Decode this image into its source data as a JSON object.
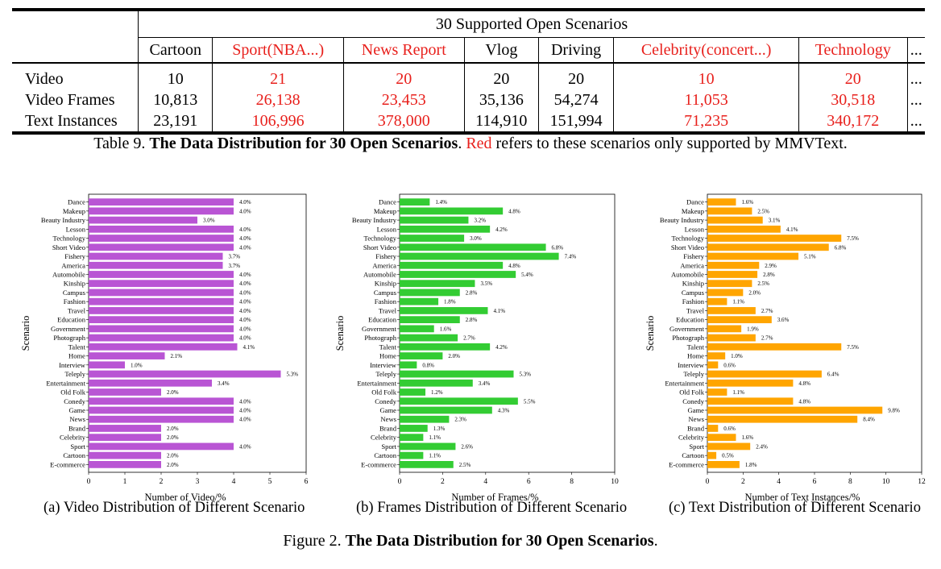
{
  "table": {
    "group_header": "30 Supported Open Scenarios",
    "columns": [
      {
        "label": "Cartoon",
        "red": false,
        "video": "10",
        "frames": "10,813",
        "text": "23,191"
      },
      {
        "label": "Sport(NBA...)",
        "red": true,
        "video": "21",
        "frames": "26,138",
        "text": "106,996"
      },
      {
        "label": "News Report",
        "red": true,
        "video": "20",
        "frames": "23,453",
        "text": "378,000"
      },
      {
        "label": "Vlog",
        "red": false,
        "video": "20",
        "frames": "35,136",
        "text": "114,910"
      },
      {
        "label": "Driving",
        "red": false,
        "video": "20",
        "frames": "54,274",
        "text": "151,994"
      },
      {
        "label": "Celebrity(concert...)",
        "red": true,
        "video": "10",
        "frames": "11,053",
        "text": "71,235"
      },
      {
        "label": "Technology",
        "red": true,
        "video": "20",
        "frames": "30,518",
        "text": "340,172"
      },
      {
        "label": "...",
        "red": false,
        "video": "...",
        "frames": "...",
        "text": "..."
      }
    ],
    "row_labels": {
      "video": "Video",
      "frames": "Video Frames",
      "text": "Text Instances"
    }
  },
  "table_caption": {
    "prefix": "Table 9. ",
    "bold": "The Data Distribution for 30 Open Scenarios",
    "sep": ". ",
    "red_word": "Red",
    "rest": " refers to these scenarios only supported by MMVText."
  },
  "chart_data": [
    {
      "type": "bar",
      "orientation": "horizontal",
      "color": "#b955d4",
      "ylabel": "Scenario",
      "xlabel": "Number of Video/%",
      "xlim": [
        0,
        6
      ],
      "xticks": [
        "0",
        "1",
        "2",
        "3",
        "4",
        "5",
        "6"
      ],
      "categories": [
        "Dance",
        "Makeup",
        "Beauty Industry",
        "Lesson",
        "Technology",
        "Short Video",
        "Fishery",
        "America",
        "Automobile",
        "Kinship",
        "Campus",
        "Fashion",
        "Travel",
        "Education",
        "Government",
        "Photograph",
        "Talent",
        "Home",
        "Interview",
        "Teleply",
        "Entertainment",
        "Old Folk",
        "Conedy",
        "Game",
        "News",
        "Brand",
        "Celebrity",
        "Sport",
        "Cartoon",
        "E-commerce"
      ],
      "values": [
        4.0,
        4.0,
        3.0,
        4.0,
        4.0,
        4.0,
        3.7,
        3.7,
        4.0,
        4.0,
        4.0,
        4.0,
        4.0,
        4.0,
        4.0,
        4.0,
        4.1,
        2.1,
        1.0,
        5.3,
        3.4,
        2.0,
        4.0,
        4.0,
        4.0,
        2.0,
        2.0,
        4.0,
        2.0,
        2.0
      ],
      "labels": [
        "4.0%",
        "4.0%",
        "3.0%",
        "4.0%",
        "4.0%",
        "4.0%",
        "3.7%",
        "3.7%",
        "4.0%",
        "4.0%",
        "4.0%",
        "4.0%",
        "4.0%",
        "4.0%",
        "4.0%",
        "4.0%",
        "4.1%",
        "2.1%",
        "1.0%",
        "5.3%",
        "3.4%",
        "2.0%",
        "4.0%",
        "4.0%",
        "4.0%",
        "2.0%",
        "2.0%",
        "4.0%",
        "2.0%",
        "2.0%"
      ]
    },
    {
      "type": "bar",
      "orientation": "horizontal",
      "color": "#33cc33",
      "ylabel": "Scenario",
      "xlabel": "Number of Frames/%",
      "xlim": [
        0,
        10
      ],
      "xticks": [
        "0",
        "2",
        "4",
        "6",
        "8",
        "10"
      ],
      "categories": [
        "Dance",
        "Makeup",
        "Beauty Industry",
        "Lesson",
        "Technology",
        "Short Video",
        "Fishery",
        "America",
        "Automobile",
        "Kinship",
        "Campus",
        "Fashion",
        "Travel",
        "Education",
        "Government",
        "Photograph",
        "Talent",
        "Home",
        "Interview",
        "Teleply",
        "Entertainment",
        "Old Folk",
        "Conedy",
        "Game",
        "News",
        "Brand",
        "Celebrity",
        "Sport",
        "Cartoon",
        "E-commerce"
      ],
      "values": [
        1.4,
        4.8,
        3.2,
        4.2,
        3.0,
        6.8,
        7.4,
        4.8,
        5.4,
        3.5,
        2.8,
        1.8,
        4.1,
        2.8,
        1.6,
        2.7,
        4.2,
        2.0,
        0.8,
        5.3,
        3.4,
        1.2,
        5.5,
        4.3,
        2.3,
        1.3,
        1.1,
        2.6,
        1.1,
        2.5
      ],
      "labels": [
        "1.4%",
        "4.8%",
        "3.2%",
        "4.2%",
        "3.0%",
        "6.8%",
        "7.4%",
        "4.8%",
        "5.4%",
        "3.5%",
        "2.8%",
        "1.8%",
        "4.1%",
        "2.8%",
        "1.6%",
        "2.7%",
        "4.2%",
        "2.0%",
        "0.8%",
        "5.3%",
        "3.4%",
        "1.2%",
        "5.5%",
        "4.3%",
        "2.3%",
        "1.3%",
        "1.1%",
        "2.6%",
        "1.1%",
        "2.5%"
      ]
    },
    {
      "type": "bar",
      "orientation": "horizontal",
      "color": "#ffa500",
      "ylabel": "Scenario",
      "xlabel": "Number of Text Instances/%",
      "xlim": [
        0,
        12
      ],
      "xticks": [
        "0",
        "2",
        "4",
        "6",
        "8",
        "10",
        "12"
      ],
      "categories": [
        "Dance",
        "Makeup",
        "Beauty Industry",
        "Lesson",
        "Technology",
        "Short Video",
        "Fishery",
        "America",
        "Automobile",
        "Kinship",
        "Campus",
        "Fashion",
        "Travel",
        "Education",
        "Government",
        "Photograph",
        "Talent",
        "Home",
        "Interview",
        "Teleply",
        "Entertainment",
        "Old Folk",
        "Conedy",
        "Game",
        "News",
        "Brand",
        "Celebrity",
        "Sport",
        "Cartoon",
        "E-commerce"
      ],
      "values": [
        1.6,
        2.5,
        3.1,
        4.1,
        7.5,
        6.8,
        5.1,
        2.9,
        2.8,
        2.5,
        2.0,
        1.1,
        2.7,
        3.6,
        1.9,
        2.7,
        7.5,
        1.0,
        0.6,
        6.4,
        4.8,
        1.1,
        4.8,
        9.8,
        8.4,
        0.6,
        1.6,
        2.4,
        0.5,
        1.8
      ],
      "labels": [
        "1.6%",
        "2.5%",
        "3.1%",
        "4.1%",
        "7.5%",
        "6.8%",
        "5.1%",
        "2.9%",
        "2.8%",
        "2.5%",
        "2.0%",
        "1.1%",
        "2.7%",
        "3.6%",
        "1.9%",
        "2.7%",
        "7.5%",
        "1.0%",
        "0.6%",
        "6.4%",
        "4.8%",
        "1.1%",
        "4.8%",
        "9.8%",
        "8.4%",
        "0.6%",
        "1.6%",
        "2.4%",
        "0.5%",
        "1.8%"
      ]
    }
  ],
  "sub_captions": [
    "(a) Video Distribution of Different Scenario",
    "(b) Frames Distribution of Different Scenario",
    "(c) Text Distribution of Different Scenario"
  ],
  "figure_caption": {
    "prefix": "Figure 2. ",
    "bold": "The Data Distribution for 30 Open Scenarios",
    "suffix": "."
  }
}
